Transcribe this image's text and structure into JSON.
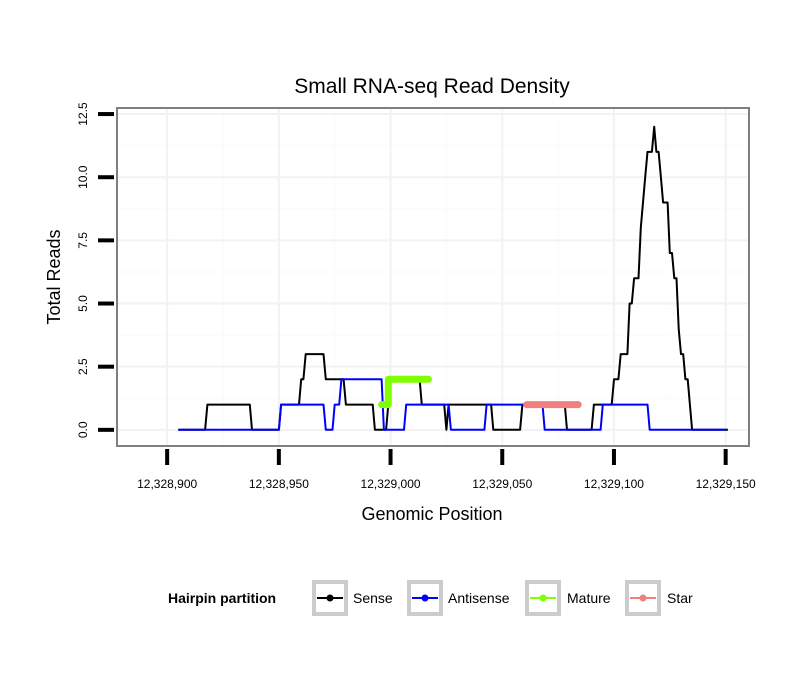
{
  "chart_data": {
    "type": "line",
    "title": "Small RNA-seq Read Density",
    "xlabel": "Genomic Position",
    "ylabel": "Total Reads",
    "xlim": [
      12328878,
      12329160
    ],
    "ylim": [
      -0.6,
      12.7
    ],
    "x_ticks": [
      12328900,
      12328950,
      12329000,
      12329050,
      12329100,
      12329150
    ],
    "x_tick_labels": [
      "12,328,900",
      "12,328,950",
      "12,329,000",
      "12,329,050",
      "12,329,100",
      "12,329,150"
    ],
    "y_ticks": [
      0,
      2.5,
      5,
      7.5,
      10,
      12.5
    ],
    "y_tick_labels": [
      "0.0",
      "2.5",
      "5.0",
      "7.5",
      "10.0",
      "12.5"
    ],
    "grid": true,
    "legend": {
      "title": "Hairpin partition",
      "position": "bottom",
      "entries": [
        {
          "name": "Sense",
          "color": "#000000"
        },
        {
          "name": "Antisense",
          "color": "#0000ff"
        },
        {
          "name": "Mature",
          "color": "#7fff00"
        },
        {
          "name": "Star",
          "color": "#f08080"
        }
      ]
    },
    "series": [
      {
        "name": "Sense",
        "color": "#000000",
        "points": [
          [
            12328905,
            0
          ],
          [
            12328917,
            0
          ],
          [
            12328918,
            1
          ],
          [
            12328937,
            1
          ],
          [
            12328938,
            0
          ],
          [
            12328950,
            0
          ],
          [
            12328951,
            1
          ],
          [
            12328959,
            1
          ],
          [
            12328960,
            2
          ],
          [
            12328961,
            2
          ],
          [
            12328962,
            3
          ],
          [
            12328970,
            3
          ],
          [
            12328971,
            2
          ],
          [
            12328979,
            2
          ],
          [
            12328980,
            1
          ],
          [
            12328992,
            1
          ],
          [
            12328993,
            0
          ],
          [
            12328998,
            0
          ],
          [
            12328999,
            1
          ],
          [
            12329000,
            2
          ],
          [
            12329013,
            2
          ],
          [
            12329014,
            1
          ],
          [
            12329024,
            1
          ],
          [
            12329025,
            0
          ],
          [
            12329026,
            1
          ],
          [
            12329045,
            1
          ],
          [
            12329046,
            0
          ],
          [
            12329058,
            0
          ],
          [
            12329059,
            1
          ],
          [
            12329078,
            1
          ],
          [
            12329079,
            0
          ],
          [
            12329090,
            0
          ],
          [
            12329091,
            1
          ],
          [
            12329099,
            1
          ],
          [
            12329100,
            2
          ],
          [
            12329102,
            2
          ],
          [
            12329103,
            3
          ],
          [
            12329106,
            3
          ],
          [
            12329107,
            5
          ],
          [
            12329108,
            5
          ],
          [
            12329109,
            6
          ],
          [
            12329111,
            6
          ],
          [
            12329112,
            8
          ],
          [
            12329113,
            9
          ],
          [
            12329114,
            10
          ],
          [
            12329115,
            11
          ],
          [
            12329117,
            11
          ],
          [
            12329118,
            12
          ],
          [
            12329119,
            11
          ],
          [
            12329120,
            11
          ],
          [
            12329121,
            10
          ],
          [
            12329122,
            9
          ],
          [
            12329124,
            9
          ],
          [
            12329125,
            7
          ],
          [
            12329126,
            7
          ],
          [
            12329127,
            6
          ],
          [
            12329128,
            6
          ],
          [
            12329129,
            4
          ],
          [
            12329130,
            3
          ],
          [
            12329131,
            3
          ],
          [
            12329132,
            2
          ],
          [
            12329133,
            2
          ],
          [
            12329135,
            0
          ],
          [
            12329151,
            0
          ]
        ]
      },
      {
        "name": "Antisense",
        "color": "#0000ff",
        "points": [
          [
            12328905,
            0
          ],
          [
            12328950,
            0
          ],
          [
            12328951,
            1
          ],
          [
            12328970,
            1
          ],
          [
            12328971,
            0
          ],
          [
            12328974,
            0
          ],
          [
            12328975,
            1
          ],
          [
            12328977,
            1
          ],
          [
            12328978,
            2
          ],
          [
            12328996,
            2
          ],
          [
            12328997,
            0
          ],
          [
            12329006,
            0
          ],
          [
            12329007,
            1
          ],
          [
            12329026,
            1
          ],
          [
            12329027,
            0
          ],
          [
            12329042,
            0
          ],
          [
            12329043,
            1
          ],
          [
            12329068,
            1
          ],
          [
            12329069,
            0
          ],
          [
            12329094,
            0
          ],
          [
            12329095,
            1
          ],
          [
            12329115,
            1
          ],
          [
            12329116,
            0
          ],
          [
            12329150,
            0
          ]
        ]
      },
      {
        "name": "Mature",
        "color": "#7fff00",
        "points": [
          [
            12328996,
            1
          ],
          [
            12328999,
            1
          ],
          [
            12328999,
            2
          ],
          [
            12329017,
            2
          ]
        ]
      },
      {
        "name": "Star",
        "color": "#f08080",
        "points": [
          [
            12329061,
            1
          ],
          [
            12329084,
            1
          ]
        ]
      }
    ]
  }
}
